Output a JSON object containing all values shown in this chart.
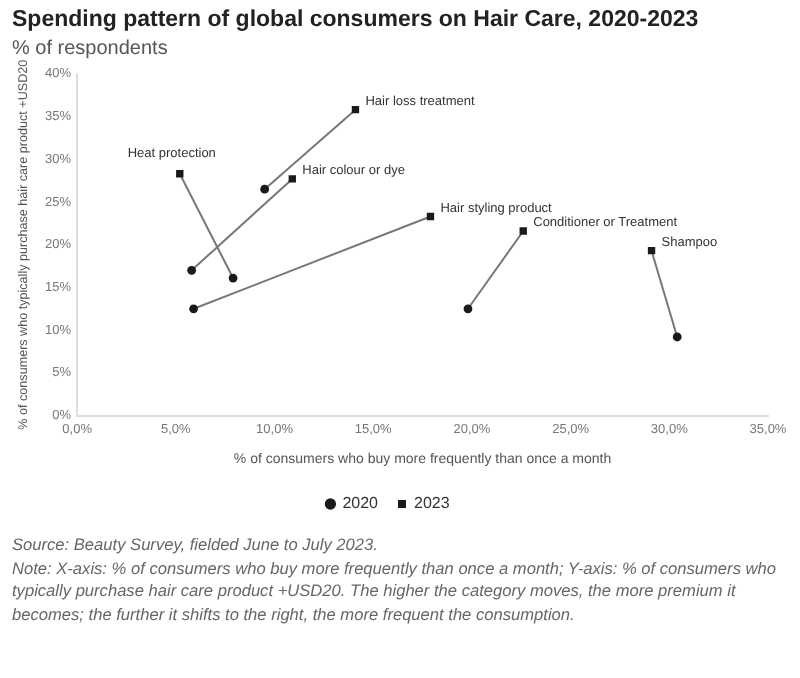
{
  "chart_data": {
    "type": "scatter",
    "title": "Spending pattern of global consumers on Hair Care, 2020-2023",
    "subtitle": "% of respondents",
    "xlabel": "% of consumers who buy more frequently than once a month",
    "ylabel": "% of consumers who typically purchase hair care product +USD20",
    "series": [
      {
        "name": "2020",
        "color": "#1a1a1a",
        "marker": "circle",
        "x": [
          9.5,
          5.8,
          7.9,
          5.9,
          19.8,
          30.4
        ],
        "values": [
          26.5,
          17.0,
          16.1,
          12.5,
          12.5,
          9.2
        ]
      },
      {
        "name": "2023",
        "color": "#1a1a1a",
        "marker": "square",
        "x": [
          14.1,
          10.9,
          5.2,
          17.9,
          22.6,
          29.1
        ],
        "values": [
          35.8,
          27.7,
          28.3,
          23.3,
          21.6,
          19.3
        ]
      }
    ],
    "xlim": [
      0,
      35
    ],
    "xticks": [
      {
        "value": 0,
        "label": "0,0%"
      },
      {
        "value": 5,
        "label": "5,0%"
      },
      {
        "value": 10,
        "label": "10,0%"
      },
      {
        "value": 15,
        "label": "15,0%"
      },
      {
        "value": 20,
        "label": "20,0%"
      },
      {
        "value": 25,
        "label": "25,0%"
      },
      {
        "value": 30,
        "label": "30,0%"
      },
      {
        "value": 35,
        "label": "35,0%"
      }
    ],
    "ylim": [
      0,
      40
    ],
    "yticks": [
      {
        "value": 0,
        "label": "0%"
      },
      {
        "value": 5,
        "label": "5%"
      },
      {
        "value": 10,
        "label": "10%"
      },
      {
        "value": 15,
        "label": "15%"
      },
      {
        "value": 20,
        "label": "20%"
      },
      {
        "value": 25,
        "label": "25%"
      },
      {
        "value": 30,
        "label": "30%"
      },
      {
        "value": 35,
        "label": "35%"
      },
      {
        "value": 40,
        "label": "40%"
      }
    ],
    "grid": false,
    "legend": "bottom",
    "annotations": [
      {
        "text": "Hair loss treatment",
        "x": 14.1,
        "y": 35.8
      },
      {
        "text": "Hair colour or dye",
        "x": 10.9,
        "y": 27.7
      },
      {
        "text": "Heat protection",
        "x": 5.2,
        "y": 28.3
      },
      {
        "text": "Hair styling product",
        "x": 17.9,
        "y": 23.3
      },
      {
        "text": "Conditioner or Treatment",
        "x": 22.6,
        "y": 21.6
      },
      {
        "text": "Shampoo",
        "x": 29.1,
        "y": 19.3
      },
      "Source: Beauty Survey, fielded June to July 2023.",
      "Note: X-axis: % of consumers who buy more frequently than once a month; Y-axis: % of consumers who typically purchase hair care product +USD20. The higher the category moves, the more premium it becomes; the further it shifts to the right, the more frequent the consumption."
    ]
  }
}
